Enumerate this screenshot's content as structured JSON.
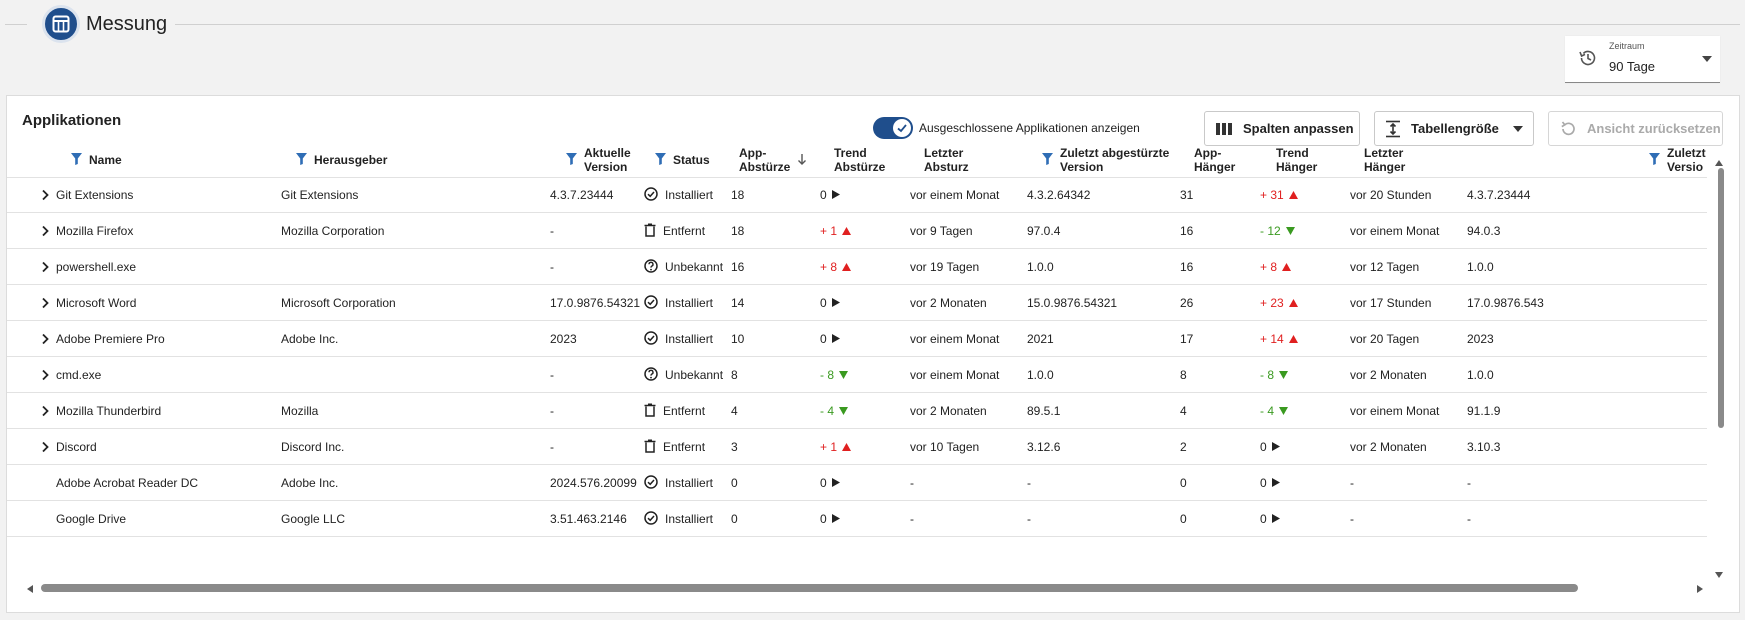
{
  "header": {
    "title": "Messung",
    "icon": "table-icon"
  },
  "period": {
    "label": "Zeitraum",
    "value": "90 Tage",
    "icon": "history-icon"
  },
  "card": {
    "title": "Applikationen",
    "toggle_label": "Ausgeschlossene Applikationen anzeigen",
    "toggle_on": true,
    "buttons": {
      "columns": "Spalten anpassen",
      "size": "Tabellengröße",
      "reset": "Ansicht zurücksetzen"
    }
  },
  "columns": {
    "name": "Name",
    "publisher": "Herausgeber",
    "current_version_1": "Aktuelle",
    "current_version_2": "Version",
    "status": "Status",
    "app_crashes_1": "App-",
    "app_crashes_2": "Abstürze",
    "trend_crashes_1": "Trend",
    "trend_crashes_2": "Abstürze",
    "last_crash_1": "Letzter",
    "last_crash_2": "Absturz",
    "last_crashed_version_1": "Zuletzt abgestürzte",
    "last_crashed_version_2": "Version",
    "app_hangs_1": "App-",
    "app_hangs_2": "Hänger",
    "trend_hangs_1": "Trend",
    "trend_hangs_2": "Hänger",
    "last_hang_1": "Letzter",
    "last_hang_2": "Hänger",
    "last_hung_version_1": "Zuletzt",
    "last_hung_version_2": "Versio"
  },
  "rows": [
    {
      "name": "Git Extensions",
      "publisher": "Git Extensions",
      "version": "4.3.7.23444",
      "status": "Installiert",
      "status_icon": "check-circle-icon",
      "crashes": "18",
      "trend_c": "0",
      "trend_c_dir": "flat",
      "last_crash": "vor einem Monat",
      "crash_ver": "4.3.2.64342",
      "hangs": "31",
      "trend_h": "+ 31",
      "trend_h_dir": "up",
      "last_hang": "vor 20 Stunden",
      "hang_ver": "4.3.7.23444",
      "expandable": true
    },
    {
      "name": "Mozilla Firefox",
      "publisher": "Mozilla Corporation",
      "version": "-",
      "status": "Entfernt",
      "status_icon": "trash-icon",
      "crashes": "18",
      "trend_c": "+ 1",
      "trend_c_dir": "up",
      "last_crash": "vor 9 Tagen",
      "crash_ver": "97.0.4",
      "hangs": "16",
      "trend_h": "- 12",
      "trend_h_dir": "down",
      "last_hang": "vor einem Monat",
      "hang_ver": "94.0.3",
      "expandable": true
    },
    {
      "name": "powershell.exe",
      "publisher": "",
      "version": "-",
      "status": "Unbekannt",
      "status_icon": "question-circle-icon",
      "crashes": "16",
      "trend_c": "+ 8",
      "trend_c_dir": "up",
      "last_crash": "vor 19 Tagen",
      "crash_ver": "1.0.0",
      "hangs": "16",
      "trend_h": "+ 8",
      "trend_h_dir": "up",
      "last_hang": "vor 12 Tagen",
      "hang_ver": "1.0.0",
      "expandable": true
    },
    {
      "name": "Microsoft Word",
      "publisher": "Microsoft Corporation",
      "version": "17.0.9876.54321",
      "status": "Installiert",
      "status_icon": "check-circle-icon",
      "crashes": "14",
      "trend_c": "0",
      "trend_c_dir": "flat",
      "last_crash": "vor 2 Monaten",
      "crash_ver": "15.0.9876.54321",
      "hangs": "26",
      "trend_h": "+ 23",
      "trend_h_dir": "up",
      "last_hang": "vor 17 Stunden",
      "hang_ver": "17.0.9876.543",
      "expandable": true
    },
    {
      "name": "Adobe Premiere Pro",
      "publisher": "Adobe Inc.",
      "version": "2023",
      "status": "Installiert",
      "status_icon": "check-circle-icon",
      "crashes": "10",
      "trend_c": "0",
      "trend_c_dir": "flat",
      "last_crash": "vor einem Monat",
      "crash_ver": "2021",
      "hangs": "17",
      "trend_h": "+ 14",
      "trend_h_dir": "up",
      "last_hang": "vor 20 Tagen",
      "hang_ver": "2023",
      "expandable": true
    },
    {
      "name": "cmd.exe",
      "publisher": "",
      "version": "-",
      "status": "Unbekannt",
      "status_icon": "question-circle-icon",
      "crashes": "8",
      "trend_c": "- 8",
      "trend_c_dir": "down",
      "last_crash": "vor einem Monat",
      "crash_ver": "1.0.0",
      "hangs": "8",
      "trend_h": "- 8",
      "trend_h_dir": "down",
      "last_hang": "vor 2 Monaten",
      "hang_ver": "1.0.0",
      "expandable": true
    },
    {
      "name": "Mozilla Thunderbird",
      "publisher": "Mozilla",
      "version": "-",
      "status": "Entfernt",
      "status_icon": "trash-icon",
      "crashes": "4",
      "trend_c": "- 4",
      "trend_c_dir": "down",
      "last_crash": "vor 2 Monaten",
      "crash_ver": "89.5.1",
      "hangs": "4",
      "trend_h": "- 4",
      "trend_h_dir": "down",
      "last_hang": "vor einem Monat",
      "hang_ver": "91.1.9",
      "expandable": true
    },
    {
      "name": "Discord",
      "publisher": "Discord Inc.",
      "version": "-",
      "status": "Entfernt",
      "status_icon": "trash-icon",
      "crashes": "3",
      "trend_c": "+ 1",
      "trend_c_dir": "up",
      "last_crash": "vor 10 Tagen",
      "crash_ver": "3.12.6",
      "hangs": "2",
      "trend_h": "0",
      "trend_h_dir": "flat",
      "last_hang": "vor 2 Monaten",
      "hang_ver": "3.10.3",
      "expandable": true
    },
    {
      "name": "Adobe Acrobat Reader DC",
      "publisher": "Adobe Inc.",
      "version": "2024.576.20099",
      "status": "Installiert",
      "status_icon": "check-circle-icon",
      "crashes": "0",
      "trend_c": "0",
      "trend_c_dir": "flat",
      "last_crash": "-",
      "crash_ver": "-",
      "hangs": "0",
      "trend_h": "0",
      "trend_h_dir": "flat",
      "last_hang": "-",
      "hang_ver": "-",
      "expandable": false
    },
    {
      "name": "Google Drive",
      "publisher": "Google LLC",
      "version": "3.51.463.2146",
      "status": "Installiert",
      "status_icon": "check-circle-icon",
      "crashes": "0",
      "trend_c": "0",
      "trend_c_dir": "flat",
      "last_crash": "-",
      "crash_ver": "-",
      "hangs": "0",
      "trend_h": "0",
      "trend_h_dir": "flat",
      "last_hang": "-",
      "hang_ver": "-",
      "expandable": false
    }
  ]
}
